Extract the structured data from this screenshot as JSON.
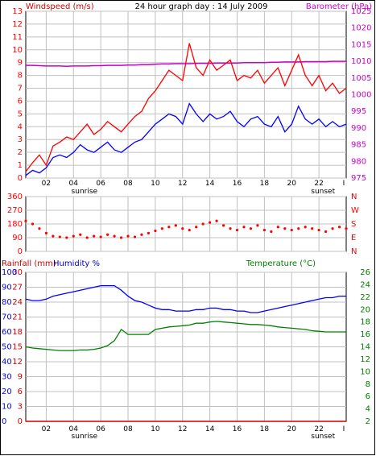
{
  "colors": {
    "windspeed": "#ff0000",
    "windspeed_avg": "#0000ff",
    "barometer": "#cc00cc",
    "direction": "#ff0000",
    "humidity": "#0000ff",
    "temperature": "#008000",
    "rainfall": "#cc0000",
    "grid": "#c0c0c0",
    "frame": "#000000",
    "text": "#000000"
  },
  "time_ticks": [
    "02",
    "04",
    "06",
    "08",
    "10",
    "12",
    "14",
    "16",
    "18",
    "20",
    "22"
  ],
  "time_end_tick": "I",
  "sunrise_label": "sunrise",
  "sunset_label": "sunset",
  "sunrise_hour": 4.8,
  "sunset_hour": 22.3,
  "chart_data": [
    {
      "type": "line",
      "title": "24 hour graph day : 14 July 2009",
      "ylabel": "Windspeed (m/s)",
      "y2label": "Barometer (hPa)",
      "ylim": [
        0,
        13
      ],
      "y2lim": [
        975,
        1025
      ],
      "yticks": [
        "0",
        "1",
        "2",
        "3",
        "4",
        "5",
        "6",
        "7",
        "8",
        "9",
        "10",
        "11",
        "12",
        "13"
      ],
      "y2ticks": [
        "975",
        "980",
        "985",
        "990",
        "995",
        "1000",
        "1005",
        "1010",
        "1015",
        "1020",
        "1025"
      ],
      "xlim": [
        0.5,
        24
      ],
      "x": [
        0.5,
        1.0,
        1.5,
        2.0,
        2.5,
        3.0,
        3.5,
        4.0,
        4.5,
        5.0,
        5.5,
        6.0,
        6.5,
        7.0,
        7.5,
        8.0,
        8.5,
        9.0,
        9.5,
        10.0,
        10.5,
        11.0,
        11.5,
        12.0,
        12.5,
        13.0,
        13.5,
        14.0,
        14.5,
        15.0,
        15.5,
        16.0,
        16.5,
        17.0,
        17.5,
        18.0,
        18.5,
        19.0,
        19.5,
        20.0,
        20.5,
        21.0,
        21.5,
        22.0,
        22.5,
        23.0,
        23.5,
        24.0
      ],
      "series": [
        {
          "name": "gust",
          "values": [
            0.5,
            1.2,
            1.8,
            1.0,
            2.5,
            2.8,
            3.2,
            3.0,
            3.6,
            4.2,
            3.4,
            3.8,
            4.4,
            4.0,
            3.6,
            4.2,
            4.8,
            5.2,
            6.2,
            6.8,
            7.6,
            8.4,
            8.0,
            7.6,
            10.5,
            8.6,
            8.0,
            9.2,
            8.4,
            8.8,
            9.2,
            7.6,
            8.0,
            7.8,
            8.4,
            7.4,
            8.0,
            8.6,
            7.2,
            8.4,
            9.6,
            8.0,
            7.2,
            8.0,
            6.8,
            7.4,
            6.6,
            7.0
          ]
        },
        {
          "name": "average",
          "values": [
            0.2,
            0.6,
            0.4,
            0.8,
            1.6,
            1.8,
            1.6,
            2.0,
            2.6,
            2.2,
            2.0,
            2.4,
            2.8,
            2.2,
            2.0,
            2.4,
            2.8,
            3.0,
            3.6,
            4.2,
            4.6,
            5.0,
            4.8,
            4.2,
            5.8,
            5.0,
            4.4,
            5.0,
            4.6,
            4.8,
            5.2,
            4.4,
            4.0,
            4.6,
            4.8,
            4.2,
            4.0,
            4.8,
            3.6,
            4.2,
            5.6,
            4.6,
            4.2,
            4.6,
            4.0,
            4.4,
            4.0,
            4.2
          ]
        },
        {
          "name": "barometer",
          "axis": "y2",
          "values": [
            1008.8,
            1008.8,
            1008.7,
            1008.6,
            1008.6,
            1008.6,
            1008.5,
            1008.6,
            1008.6,
            1008.6,
            1008.7,
            1008.7,
            1008.8,
            1008.8,
            1008.8,
            1008.9,
            1008.9,
            1009.0,
            1009.0,
            1009.1,
            1009.2,
            1009.2,
            1009.3,
            1009.3,
            1009.3,
            1009.4,
            1009.4,
            1009.4,
            1009.5,
            1009.5,
            1009.5,
            1009.5,
            1009.6,
            1009.6,
            1009.6,
            1009.6,
            1009.7,
            1009.7,
            1009.8,
            1009.8,
            1009.8,
            1009.9,
            1009.9,
            1009.9,
            1009.9,
            1010.0,
            1010.0,
            1010.0
          ]
        }
      ]
    },
    {
      "type": "scatter",
      "ylabel": "",
      "ylim": [
        0,
        360
      ],
      "yticks": [
        "0",
        "90",
        "180",
        "270",
        "360"
      ],
      "y2ticks": [
        "N",
        "E",
        "S",
        "W",
        "N"
      ],
      "xlim": [
        0.5,
        24
      ],
      "x": [
        0.5,
        1.0,
        1.5,
        2.0,
        2.5,
        3.0,
        3.5,
        4.0,
        4.5,
        5.0,
        5.5,
        6.0,
        6.5,
        7.0,
        7.5,
        8.0,
        8.5,
        9.0,
        9.5,
        10.0,
        10.5,
        11.0,
        11.5,
        12.0,
        12.5,
        13.0,
        13.5,
        14.0,
        14.5,
        15.0,
        15.5,
        16.0,
        16.5,
        17.0,
        17.5,
        18.0,
        18.5,
        19.0,
        19.5,
        20.0,
        20.5,
        21.0,
        21.5,
        22.0,
        22.5,
        23.0,
        23.5,
        24.0
      ],
      "series": [
        {
          "name": "direction",
          "values": [
            200,
            180,
            150,
            120,
            100,
            95,
            90,
            100,
            110,
            90,
            100,
            95,
            110,
            100,
            90,
            100,
            95,
            110,
            120,
            135,
            150,
            160,
            170,
            150,
            140,
            160,
            180,
            190,
            200,
            170,
            150,
            140,
            160,
            150,
            170,
            140,
            130,
            160,
            150,
            140,
            150,
            160,
            150,
            140,
            130,
            150,
            160,
            150
          ]
        }
      ]
    },
    {
      "type": "line",
      "ylabel": "Rainfall (mm)",
      "y2label": "Temperature (°C)",
      "humidity_label": "Humidity %",
      "ylim": [
        0,
        30
      ],
      "yticks": [
        "0",
        "3",
        "6",
        "9",
        "12",
        "15",
        "18",
        "21",
        "24",
        "27",
        "30"
      ],
      "humidity_lim": [
        0,
        100
      ],
      "humidity_ticks": [
        "0",
        "10",
        "20",
        "30",
        "40",
        "50",
        "60",
        "70",
        "80",
        "90",
        "100"
      ],
      "y2lim": [
        2,
        26
      ],
      "y2ticks": [
        "2",
        "4",
        "6",
        "8",
        "10",
        "12",
        "14",
        "16",
        "18",
        "20",
        "22",
        "24",
        "26"
      ],
      "xlim": [
        0.5,
        24
      ],
      "x": [
        0.5,
        1.0,
        1.5,
        2.0,
        2.5,
        3.0,
        3.5,
        4.0,
        4.5,
        5.0,
        5.5,
        6.0,
        6.5,
        7.0,
        7.5,
        8.0,
        8.5,
        9.0,
        9.5,
        10.0,
        10.5,
        11.0,
        11.5,
        12.0,
        12.5,
        13.0,
        13.5,
        14.0,
        14.5,
        15.0,
        15.5,
        16.0,
        16.5,
        17.0,
        17.5,
        18.0,
        18.5,
        19.0,
        19.5,
        20.0,
        20.5,
        21.0,
        21.5,
        22.0,
        22.5,
        23.0,
        23.5,
        24.0
      ],
      "series": [
        {
          "name": "humidity",
          "axis": "humidity",
          "values": [
            82,
            81,
            81,
            82,
            84,
            85,
            86,
            87,
            88,
            89,
            90,
            91,
            91,
            91,
            88,
            84,
            81,
            80,
            78,
            76,
            75,
            75,
            74,
            74,
            74,
            75,
            75,
            76,
            76,
            75,
            75,
            74,
            74,
            73,
            73,
            74,
            75,
            76,
            77,
            78,
            79,
            80,
            81,
            82,
            83,
            83,
            84,
            84
          ]
        },
        {
          "name": "temperature",
          "axis": "y2",
          "values": [
            14.0,
            13.8,
            13.7,
            13.6,
            13.5,
            13.4,
            13.4,
            13.4,
            13.5,
            13.5,
            13.6,
            13.8,
            14.2,
            15.0,
            16.8,
            16.0,
            16.0,
            16.0,
            16.0,
            16.8,
            17.0,
            17.2,
            17.3,
            17.4,
            17.5,
            17.8,
            17.8,
            18.0,
            18.1,
            18.0,
            17.9,
            17.8,
            17.7,
            17.6,
            17.6,
            17.5,
            17.4,
            17.2,
            17.1,
            17.0,
            16.9,
            16.8,
            16.6,
            16.5,
            16.4,
            16.4,
            16.4,
            16.4
          ]
        },
        {
          "name": "rainfall",
          "axis": "y",
          "values": [
            0,
            0,
            0,
            0,
            0,
            0,
            0,
            0,
            0,
            0,
            0,
            0,
            0,
            0,
            0,
            0,
            0,
            0,
            0,
            0,
            0,
            0,
            0,
            0,
            0,
            0,
            0,
            0,
            0,
            0,
            0,
            0,
            0,
            0,
            0,
            0,
            0,
            0,
            0,
            0,
            0,
            0,
            0,
            0,
            0,
            0,
            0,
            0
          ]
        }
      ]
    }
  ]
}
